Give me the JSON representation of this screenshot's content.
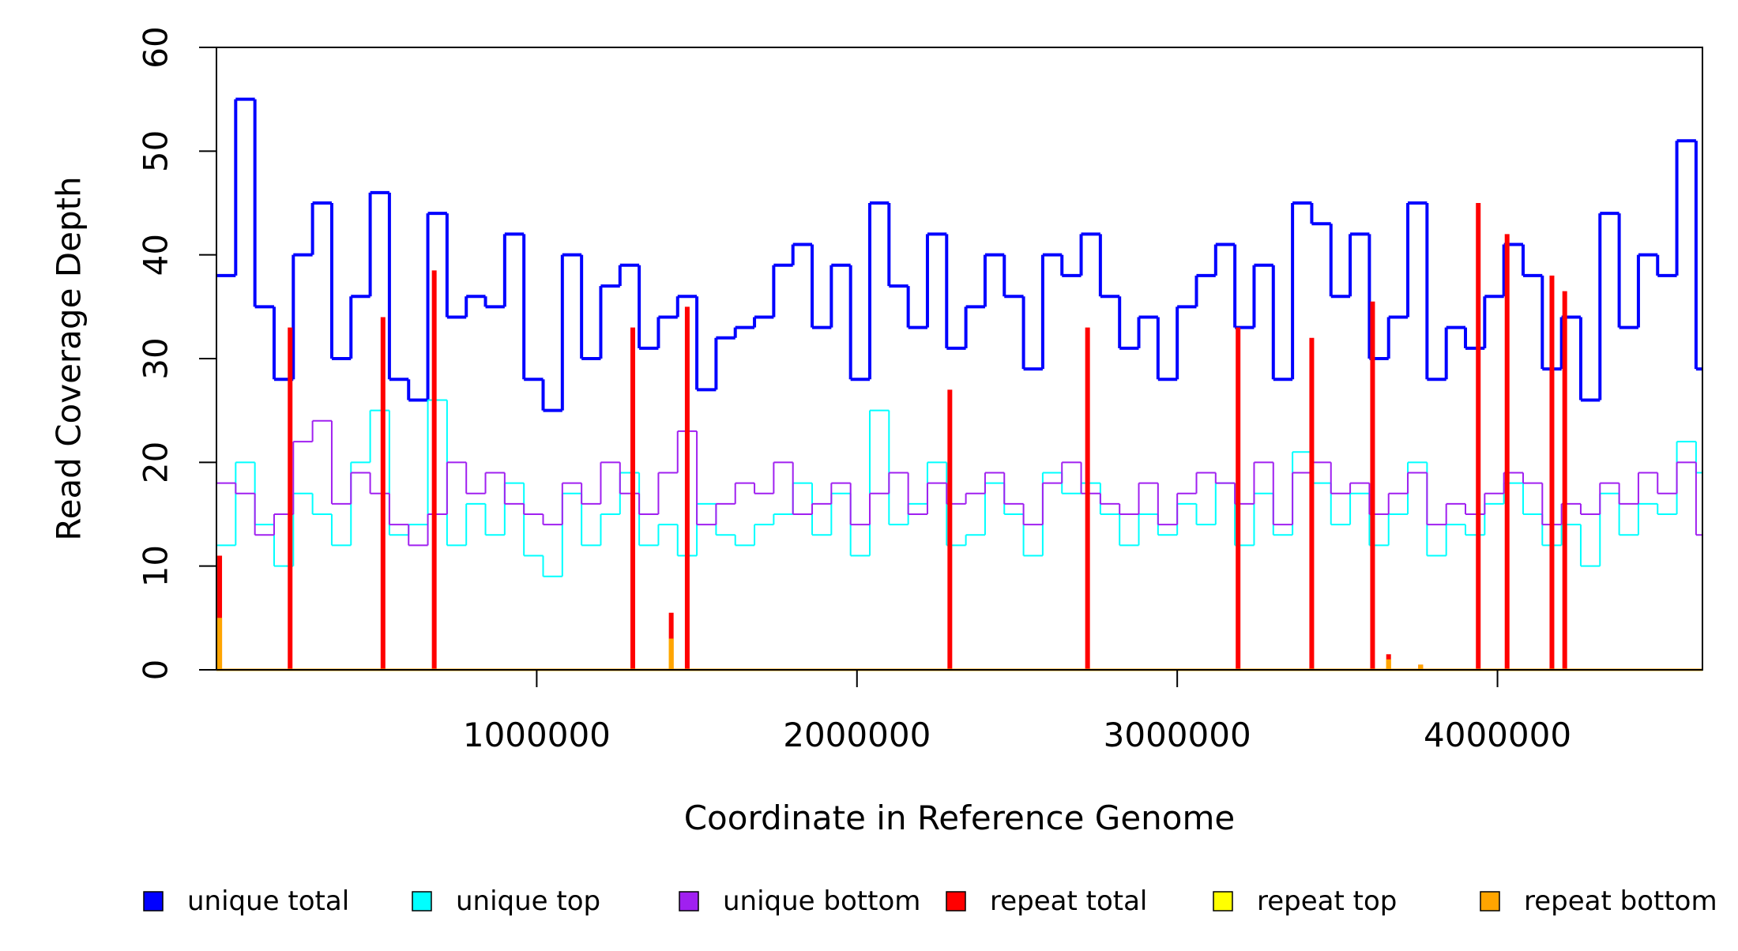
{
  "chart_data": {
    "type": "line",
    "title": "",
    "xlabel": "Coordinate in Reference Genome",
    "ylabel": "Read Coverage Depth",
    "xlim": [
      0,
      4640000
    ],
    "ylim": [
      0,
      60
    ],
    "x_ticks": [
      1000000,
      2000000,
      3000000,
      4000000
    ],
    "x_tick_labels": [
      "1000000",
      "2000000",
      "3000000",
      "4000000"
    ],
    "y_ticks": [
      0,
      10,
      20,
      30,
      40,
      50,
      60
    ],
    "y_tick_labels": [
      "0",
      "10",
      "20",
      "30",
      "40",
      "50",
      "60"
    ],
    "grid": false,
    "legend_position": "bottom",
    "series": [
      {
        "name": "unique total",
        "color": "#0000ff",
        "style": "step",
        "x": [
          0,
          60000,
          120000,
          180000,
          240000,
          300000,
          360000,
          420000,
          480000,
          540000,
          600000,
          660000,
          720000,
          780000,
          840000,
          900000,
          960000,
          1020000,
          1080000,
          1140000,
          1200000,
          1260000,
          1320000,
          1380000,
          1440000,
          1500000,
          1560000,
          1620000,
          1680000,
          1740000,
          1800000,
          1860000,
          1920000,
          1980000,
          2040000,
          2100000,
          2160000,
          2220000,
          2280000,
          2340000,
          2400000,
          2460000,
          2520000,
          2580000,
          2640000,
          2700000,
          2760000,
          2820000,
          2880000,
          2940000,
          3000000,
          3060000,
          3120000,
          3180000,
          3240000,
          3300000,
          3360000,
          3420000,
          3480000,
          3540000,
          3600000,
          3660000,
          3720000,
          3780000,
          3840000,
          3900000,
          3960000,
          4020000,
          4080000,
          4140000,
          4200000,
          4260000,
          4320000,
          4380000,
          4440000,
          4500000,
          4560000,
          4620000
        ],
        "values": [
          38,
          55,
          35,
          28,
          40,
          45,
          30,
          36,
          46,
          28,
          26,
          44,
          34,
          36,
          35,
          42,
          28,
          25,
          40,
          30,
          37,
          39,
          31,
          34,
          36,
          27,
          32,
          33,
          34,
          39,
          41,
          33,
          39,
          28,
          45,
          37,
          33,
          42,
          31,
          35,
          40,
          36,
          29,
          40,
          38,
          42,
          36,
          31,
          34,
          28,
          35,
          38,
          41,
          33,
          39,
          28,
          45,
          43,
          36,
          42,
          30,
          34,
          45,
          28,
          33,
          31,
          36,
          41,
          38,
          29,
          34,
          26,
          44,
          33,
          40,
          38,
          51,
          29
        ]
      },
      {
        "name": "unique top",
        "color": "#00ffff",
        "style": "step",
        "x": [
          0,
          60000,
          120000,
          180000,
          240000,
          300000,
          360000,
          420000,
          480000,
          540000,
          600000,
          660000,
          720000,
          780000,
          840000,
          900000,
          960000,
          1020000,
          1080000,
          1140000,
          1200000,
          1260000,
          1320000,
          1380000,
          1440000,
          1500000,
          1560000,
          1620000,
          1680000,
          1740000,
          1800000,
          1860000,
          1920000,
          1980000,
          2040000,
          2100000,
          2160000,
          2220000,
          2280000,
          2340000,
          2400000,
          2460000,
          2520000,
          2580000,
          2640000,
          2700000,
          2760000,
          2820000,
          2880000,
          2940000,
          3000000,
          3060000,
          3120000,
          3180000,
          3240000,
          3300000,
          3360000,
          3420000,
          3480000,
          3540000,
          3600000,
          3660000,
          3720000,
          3780000,
          3840000,
          3900000,
          3960000,
          4020000,
          4080000,
          4140000,
          4200000,
          4260000,
          4320000,
          4380000,
          4440000,
          4500000,
          4560000,
          4620000
        ],
        "values": [
          12,
          20,
          14,
          10,
          17,
          15,
          12,
          20,
          25,
          13,
          14,
          26,
          12,
          16,
          13,
          18,
          11,
          9,
          17,
          12,
          15,
          19,
          12,
          14,
          11,
          16,
          13,
          12,
          14,
          15,
          18,
          13,
          17,
          11,
          25,
          14,
          16,
          20,
          12,
          13,
          18,
          15,
          11,
          19,
          17,
          18,
          15,
          12,
          15,
          13,
          16,
          14,
          18,
          12,
          17,
          13,
          21,
          18,
          14,
          17,
          12,
          15,
          20,
          11,
          14,
          13,
          16,
          18,
          15,
          12,
          14,
          10,
          17,
          13,
          16,
          15,
          22,
          19
        ]
      },
      {
        "name": "unique bottom",
        "color": "#a020f0",
        "style": "step",
        "x": [
          0,
          60000,
          120000,
          180000,
          240000,
          300000,
          360000,
          420000,
          480000,
          540000,
          600000,
          660000,
          720000,
          780000,
          840000,
          900000,
          960000,
          1020000,
          1080000,
          1140000,
          1200000,
          1260000,
          1320000,
          1380000,
          1440000,
          1500000,
          1560000,
          1620000,
          1680000,
          1740000,
          1800000,
          1860000,
          1920000,
          1980000,
          2040000,
          2100000,
          2160000,
          2220000,
          2280000,
          2340000,
          2400000,
          2460000,
          2520000,
          2580000,
          2640000,
          2700000,
          2760000,
          2820000,
          2880000,
          2940000,
          3000000,
          3060000,
          3120000,
          3180000,
          3240000,
          3300000,
          3360000,
          3420000,
          3480000,
          3540000,
          3600000,
          3660000,
          3720000,
          3780000,
          3840000,
          3900000,
          3960000,
          4020000,
          4080000,
          4140000,
          4200000,
          4260000,
          4320000,
          4380000,
          4440000,
          4500000,
          4560000,
          4620000
        ],
        "values": [
          18,
          17,
          13,
          15,
          22,
          24,
          16,
          19,
          17,
          14,
          12,
          15,
          20,
          17,
          19,
          16,
          15,
          14,
          18,
          16,
          20,
          17,
          15,
          19,
          23,
          14,
          16,
          18,
          17,
          20,
          15,
          16,
          18,
          14,
          17,
          19,
          15,
          18,
          16,
          17,
          19,
          16,
          14,
          18,
          20,
          17,
          16,
          15,
          18,
          14,
          17,
          19,
          18,
          16,
          20,
          14,
          19,
          20,
          17,
          18,
          15,
          17,
          19,
          14,
          16,
          15,
          17,
          19,
          18,
          14,
          16,
          15,
          18,
          16,
          19,
          17,
          20,
          13
        ]
      },
      {
        "name": "repeat total",
        "color": "#ff0000",
        "style": "spikes",
        "x": [
          10000,
          230000,
          520000,
          680000,
          1300000,
          1420000,
          1470000,
          2290000,
          2720000,
          3190000,
          3420000,
          3610000,
          3660000,
          3760000,
          3940000,
          4030000,
          4170000,
          4210000
        ],
        "values": [
          11,
          33,
          34,
          38.5,
          33,
          5.5,
          35,
          27,
          33,
          33,
          32,
          35.5,
          1.5,
          0.5,
          45,
          42,
          38,
          36.5
        ]
      },
      {
        "name": "repeat top",
        "color": "#ffff00",
        "style": "spikes",
        "x": [
          10000,
          1420000,
          3660000
        ],
        "values": [
          5,
          3,
          1
        ]
      },
      {
        "name": "repeat bottom",
        "color": "#ffa500",
        "style": "spikes",
        "x": [
          10000,
          1420000,
          3660000,
          3760000
        ],
        "values": [
          5,
          3,
          1,
          0.5
        ]
      }
    ]
  }
}
